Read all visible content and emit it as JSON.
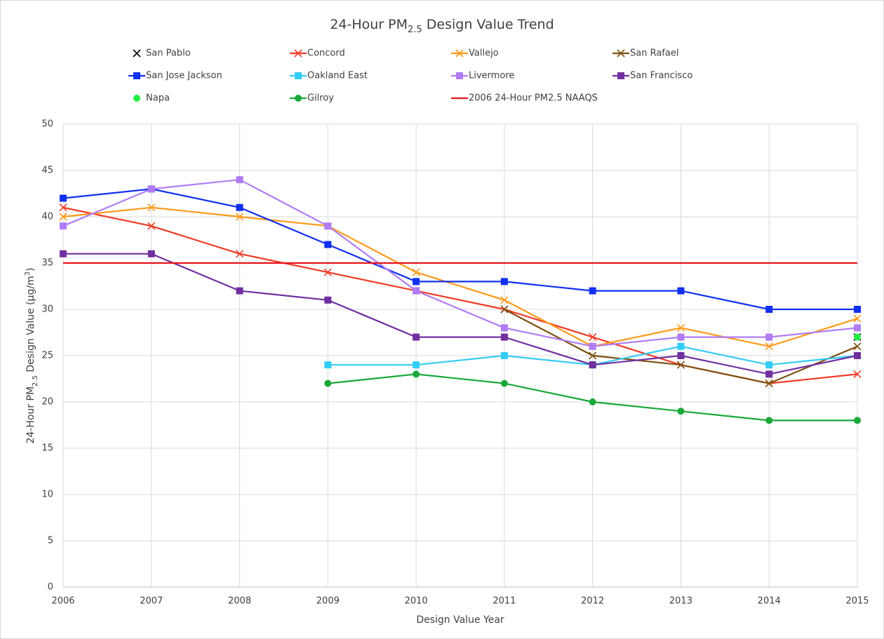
{
  "chart_data": {
    "type": "line",
    "title": [
      "24-Hour PM",
      "2.5",
      " Design Value Trend"
    ],
    "x_label": "Design Value Year",
    "y_label": [
      "24-Hour PM",
      "2.5",
      " Design Value (μg/m",
      "3",
      ")"
    ],
    "x": [
      2006,
      2007,
      2008,
      2009,
      2010,
      2011,
      2012,
      2013,
      2014,
      2015
    ],
    "xlim": [
      2006,
      2015
    ],
    "xticks": [
      2006,
      2007,
      2008,
      2009,
      2010,
      2011,
      2012,
      2013,
      2014,
      2015
    ],
    "ylim": [
      0,
      50
    ],
    "yticks": [
      0,
      5,
      10,
      15,
      20,
      25,
      30,
      35,
      40,
      45,
      50
    ],
    "grid": true,
    "legend": "top",
    "series": [
      {
        "name": "San Pablo",
        "color": "#000000",
        "marker": "x",
        "line": false,
        "values": [
          null,
          null,
          null,
          null,
          null,
          null,
          null,
          null,
          null,
          27
        ]
      },
      {
        "name": "Concord",
        "color": "#f03c28",
        "marker": "x",
        "line": true,
        "values": [
          41,
          39,
          36,
          34,
          32,
          30,
          27,
          24,
          22,
          23
        ]
      },
      {
        "name": "Vallejo",
        "color": "#ff9a1a",
        "marker": "x",
        "line": true,
        "values": [
          40,
          41,
          40,
          39,
          34,
          31,
          26,
          28,
          26,
          29
        ]
      },
      {
        "name": "San Rafael",
        "color": "#7f5213",
        "marker": "x",
        "line": true,
        "values": [
          null,
          null,
          null,
          null,
          null,
          30,
          25,
          24,
          22,
          26
        ]
      },
      {
        "name": "San Jose Jackson",
        "color": "#1030f0",
        "marker": "square",
        "line": true,
        "values": [
          42,
          43,
          41,
          37,
          33,
          33,
          32,
          32,
          30,
          30
        ]
      },
      {
        "name": "Oakland East",
        "color": "#33ccf5",
        "marker": "square",
        "line": true,
        "values": [
          null,
          null,
          null,
          24,
          24,
          25,
          24,
          26,
          24,
          25
        ]
      },
      {
        "name": "Livermore",
        "color": "#b07cf5",
        "marker": "square",
        "line": true,
        "values": [
          39,
          43,
          44,
          39,
          32,
          28,
          26,
          27,
          27,
          28
        ]
      },
      {
        "name": "San Francisco",
        "color": "#7030a0",
        "marker": "square",
        "line": true,
        "values": [
          36,
          36,
          32,
          31,
          27,
          27,
          24,
          25,
          23,
          25
        ]
      },
      {
        "name": "Napa",
        "color": "#22ee44",
        "marker": "circle",
        "line": false,
        "values": [
          null,
          null,
          null,
          null,
          null,
          null,
          null,
          null,
          null,
          27
        ]
      },
      {
        "name": "Gilroy",
        "color": "#1aa83a",
        "marker": "circle",
        "line": true,
        "values": [
          null,
          null,
          null,
          22,
          23,
          22,
          20,
          19,
          18,
          18
        ]
      },
      {
        "name": "2006 24-Hour PM2.5 NAAQS",
        "color": "#e8141a",
        "marker": "none",
        "line": true,
        "values": [
          35,
          35,
          35,
          35,
          35,
          35,
          35,
          35,
          35,
          35
        ]
      }
    ]
  }
}
